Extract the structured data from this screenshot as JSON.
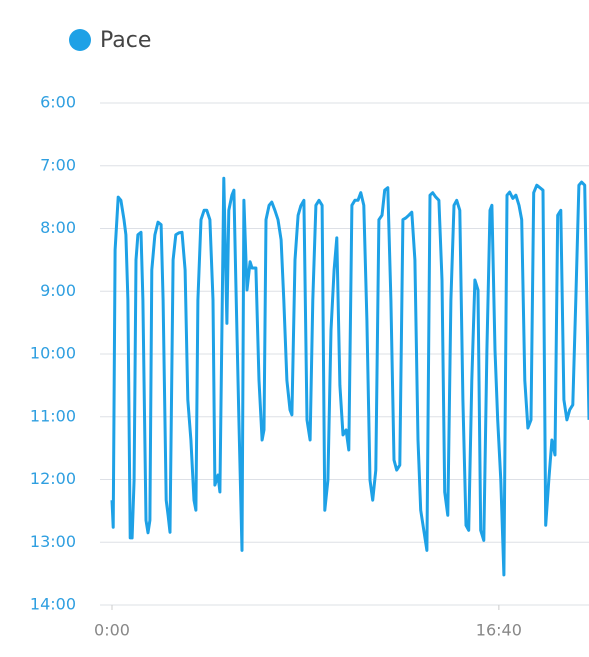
{
  "chart_data": {
    "type": "line",
    "x": [
      0,
      3,
      8,
      16,
      23,
      31,
      36,
      41,
      47,
      52,
      57,
      62,
      67,
      75,
      80,
      88,
      93,
      98,
      103,
      111,
      119,
      127,
      132,
      140,
      145,
      150,
      158,
      165,
      173,
      181,
      189,
      196,
      204,
      212,
      217,
      222,
      230,
      238,
      245,
      253,
      261,
      266,
      274,
      279,
      289,
      297,
      302,
      310,
      315,
      320,
      328,
      336,
      341,
      349,
      357,
      362,
      372,
      380,
      388,
      393,
      398,
      406,
      413,
      421,
      429,
      437,
      444,
      452,
      460,
      465,
      473,
      481,
      488,
      496,
      504,
      512,
      519,
      527,
      535,
      543,
      550,
      558,
      566,
      574,
      581,
      589,
      597,
      605,
      612,
      620,
      628,
      636,
      643,
      651,
      659,
      667,
      674,
      682,
      690,
      698,
      705,
      713,
      721,
      729,
      736,
      744,
      752,
      760,
      767,
      775,
      783,
      791,
      798,
      806,
      814,
      822,
      829,
      837,
      845,
      853,
      860,
      868,
      876,
      884,
      891,
      899,
      907,
      915,
      922,
      930,
      938,
      946,
      953,
      961,
      969,
      977,
      982,
      990,
      997,
      1005,
      1013,
      1021,
      1028,
      1036,
      1044,
      1052,
      1059,
      1067,
      1075,
      1083,
      1090,
      1098,
      1106,
      1114,
      1121,
      1129,
      1137,
      1145,
      1152,
      1160,
      1168,
      1176,
      1183,
      1191,
      1199,
      1207,
      1214,
      1222,
      1233
    ],
    "series": [
      {
        "name": "Pace",
        "color": "#1ea1e6",
        "values": [
          12.33,
          12.76,
          8.34,
          7.5,
          7.55,
          7.86,
          8.1,
          9.14,
          12.93,
          12.93,
          12.01,
          8.5,
          8.1,
          8.06,
          9.14,
          12.65,
          12.85,
          12.65,
          8.66,
          8.1,
          7.9,
          7.94,
          9.14,
          12.33,
          12.57,
          12.84,
          8.5,
          8.1,
          8.07,
          8.06,
          8.66,
          10.73,
          11.37,
          12.33,
          12.49,
          9.14,
          7.86,
          7.71,
          7.71,
          7.86,
          9.14,
          12.09,
          11.93,
          12.2,
          7.2,
          9.51,
          7.71,
          7.47,
          7.39,
          8.82,
          11.05,
          13.13,
          7.55,
          8.98,
          8.53,
          8.63,
          8.63,
          10.42,
          11.37,
          11.21,
          7.86,
          7.63,
          7.58,
          7.71,
          7.86,
          8.18,
          9.14,
          10.42,
          10.89,
          10.97,
          8.5,
          7.79,
          7.64,
          7.55,
          11.05,
          11.37,
          9.14,
          7.63,
          7.55,
          7.63,
          12.49,
          12.01,
          9.62,
          8.66,
          8.15,
          10.5,
          11.29,
          11.21,
          11.53,
          7.63,
          7.55,
          7.55,
          7.43,
          7.63,
          9.46,
          12.01,
          12.33,
          11.85,
          7.86,
          7.79,
          7.39,
          7.35,
          9.14,
          11.69,
          11.85,
          11.77,
          7.86,
          7.83,
          7.79,
          7.74,
          8.5,
          11.37,
          12.49,
          12.81,
          13.13,
          7.47,
          7.43,
          7.5,
          7.55,
          8.82,
          12.2,
          12.57,
          9.14,
          7.63,
          7.55,
          7.71,
          10.73,
          12.73,
          12.81,
          10.42,
          8.82,
          8.98,
          12.81,
          12.97,
          9.94,
          7.71,
          7.63,
          9.94,
          11.05,
          12.01,
          13.52,
          7.47,
          7.42,
          7.52,
          7.47,
          7.63,
          7.86,
          10.42,
          11.18,
          11.05,
          7.43,
          7.31,
          7.35,
          7.39,
          12.73,
          12.01,
          11.37,
          11.61,
          7.79,
          7.71,
          10.73,
          11.05,
          10.89,
          10.81,
          9.14,
          7.31,
          7.26,
          7.31,
          11.05
        ]
      }
    ],
    "xlim": [
      0,
      1233
    ],
    "xticks": [
      {
        "value": 0,
        "label": "0:00"
      },
      {
        "value": 1000,
        "label": "16:40"
      }
    ],
    "ylim": [
      14,
      6
    ],
    "yticks": [
      {
        "value": 6,
        "label": "6:00"
      },
      {
        "value": 7,
        "label": "7:00"
      },
      {
        "value": 8,
        "label": "8:00"
      },
      {
        "value": 9,
        "label": "9:00"
      },
      {
        "value": 10,
        "label": "10:00"
      },
      {
        "value": 11,
        "label": "11:00"
      },
      {
        "value": 12,
        "label": "12:00"
      },
      {
        "value": 13,
        "label": "13:00"
      },
      {
        "value": 14,
        "label": "14:00"
      }
    ],
    "grid": true
  }
}
